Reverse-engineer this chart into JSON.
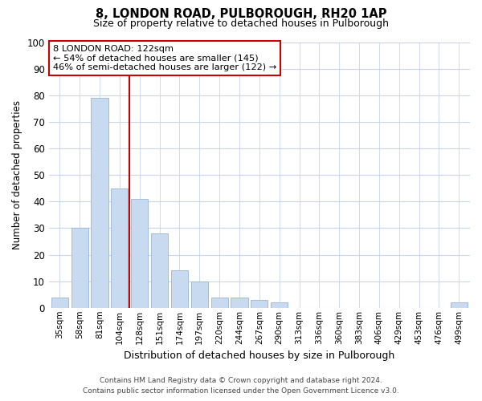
{
  "title": "8, LONDON ROAD, PULBOROUGH, RH20 1AP",
  "subtitle": "Size of property relative to detached houses in Pulborough",
  "xlabel": "Distribution of detached houses by size in Pulborough",
  "ylabel": "Number of detached properties",
  "bar_labels": [
    "35sqm",
    "58sqm",
    "81sqm",
    "104sqm",
    "128sqm",
    "151sqm",
    "174sqm",
    "197sqm",
    "220sqm",
    "244sqm",
    "267sqm",
    "290sqm",
    "313sqm",
    "336sqm",
    "360sqm",
    "383sqm",
    "406sqm",
    "429sqm",
    "453sqm",
    "476sqm",
    "499sqm"
  ],
  "bar_values": [
    4,
    30,
    79,
    45,
    41,
    28,
    14,
    10,
    4,
    4,
    3,
    2,
    0,
    0,
    0,
    0,
    0,
    0,
    0,
    0,
    2
  ],
  "bar_color": "#c8daf0",
  "bar_edge_color": "#9ab5d5",
  "vline_color": "#cc0000",
  "annotation_box_text": "8 LONDON ROAD: 122sqm\n← 54% of detached houses are smaller (145)\n46% of semi-detached houses are larger (122) →",
  "ylim": [
    0,
    100
  ],
  "yticks": [
    0,
    10,
    20,
    30,
    40,
    50,
    60,
    70,
    80,
    90,
    100
  ],
  "background_color": "#ffffff",
  "grid_color": "#c8d4e8",
  "footer_line1": "Contains HM Land Registry data © Crown copyright and database right 2024.",
  "footer_line2": "Contains public sector information licensed under the Open Government Licence v3.0."
}
